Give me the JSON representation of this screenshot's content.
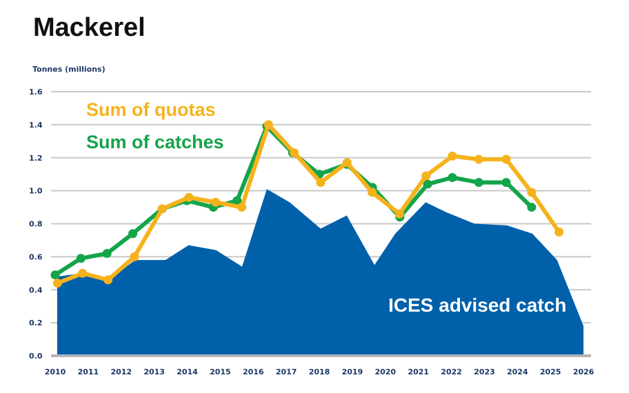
{
  "chart_data": {
    "type": "line",
    "title": "Mackerel",
    "ylabel": "Tonnes (millions)",
    "xlabel": "",
    "ylim": [
      0,
      1.6
    ],
    "xlim": [
      2010,
      2026
    ],
    "yticks": [
      "0.0",
      "0.2",
      "0.4",
      "0.6",
      "0.8",
      "1.0",
      "1.2",
      "1.4",
      "1.6"
    ],
    "xticks": [
      "2010",
      "2011",
      "2012",
      "2013",
      "2014",
      "2015",
      "2016",
      "2017",
      "2018",
      "2019",
      "2020",
      "2021",
      "2022",
      "2023",
      "2024",
      "2025",
      "2026"
    ],
    "grid": true,
    "legend": "top-left",
    "colors": {
      "quotas": "#f6b21c",
      "catches": "#14a44a",
      "advice": "#0060aa",
      "text": "#1c3866"
    },
    "series": [
      {
        "name": "Sum of quotas",
        "type": "line",
        "x": [
          2010.07,
          2010.83,
          2011.6,
          2012.4,
          2013.24,
          2014.05,
          2014.86,
          2015.65,
          2016.46,
          2017.24,
          2018.04,
          2018.84,
          2019.6,
          2020.43,
          2021.23,
          2022.03,
          2022.83,
          2023.66,
          2024.43,
          2025.26
        ],
        "values": [
          0.44,
          0.5,
          0.46,
          0.6,
          0.89,
          0.96,
          0.93,
          0.9,
          1.4,
          1.23,
          1.05,
          1.17,
          0.99,
          0.86,
          1.09,
          1.21,
          1.19,
          1.19,
          0.99,
          0.75
        ]
      },
      {
        "name": "Sum of catches",
        "type": "line",
        "x": [
          2010.0,
          2010.78,
          2011.57,
          2012.35,
          2013.24,
          2013.99,
          2014.79,
          2015.51,
          2016.41,
          2017.19,
          2018.0,
          2018.83,
          2019.61,
          2020.44,
          2021.28,
          2022.03,
          2022.83,
          2023.66,
          2024.43
        ],
        "values": [
          0.49,
          0.59,
          0.62,
          0.74,
          0.89,
          0.94,
          0.9,
          0.94,
          1.39,
          1.23,
          1.1,
          1.16,
          1.02,
          0.84,
          1.04,
          1.08,
          1.05,
          1.05,
          0.9
        ]
      },
      {
        "name": "ICES advised catch",
        "type": "area",
        "x": [
          2010.06,
          2010.83,
          2011.63,
          2012.42,
          2013.34,
          2014.04,
          2014.87,
          2015.66,
          2016.41,
          2017.1,
          2018.04,
          2018.83,
          2019.67,
          2020.3,
          2021.22,
          2021.84,
          2022.7,
          2023.68,
          2024.45,
          2025.2,
          2026.0
        ],
        "values": [
          0.48,
          0.5,
          0.46,
          0.58,
          0.58,
          0.67,
          0.64,
          0.54,
          1.01,
          0.93,
          0.77,
          0.85,
          0.55,
          0.74,
          0.93,
          0.87,
          0.8,
          0.79,
          0.74,
          0.58,
          0.18
        ]
      }
    ]
  }
}
